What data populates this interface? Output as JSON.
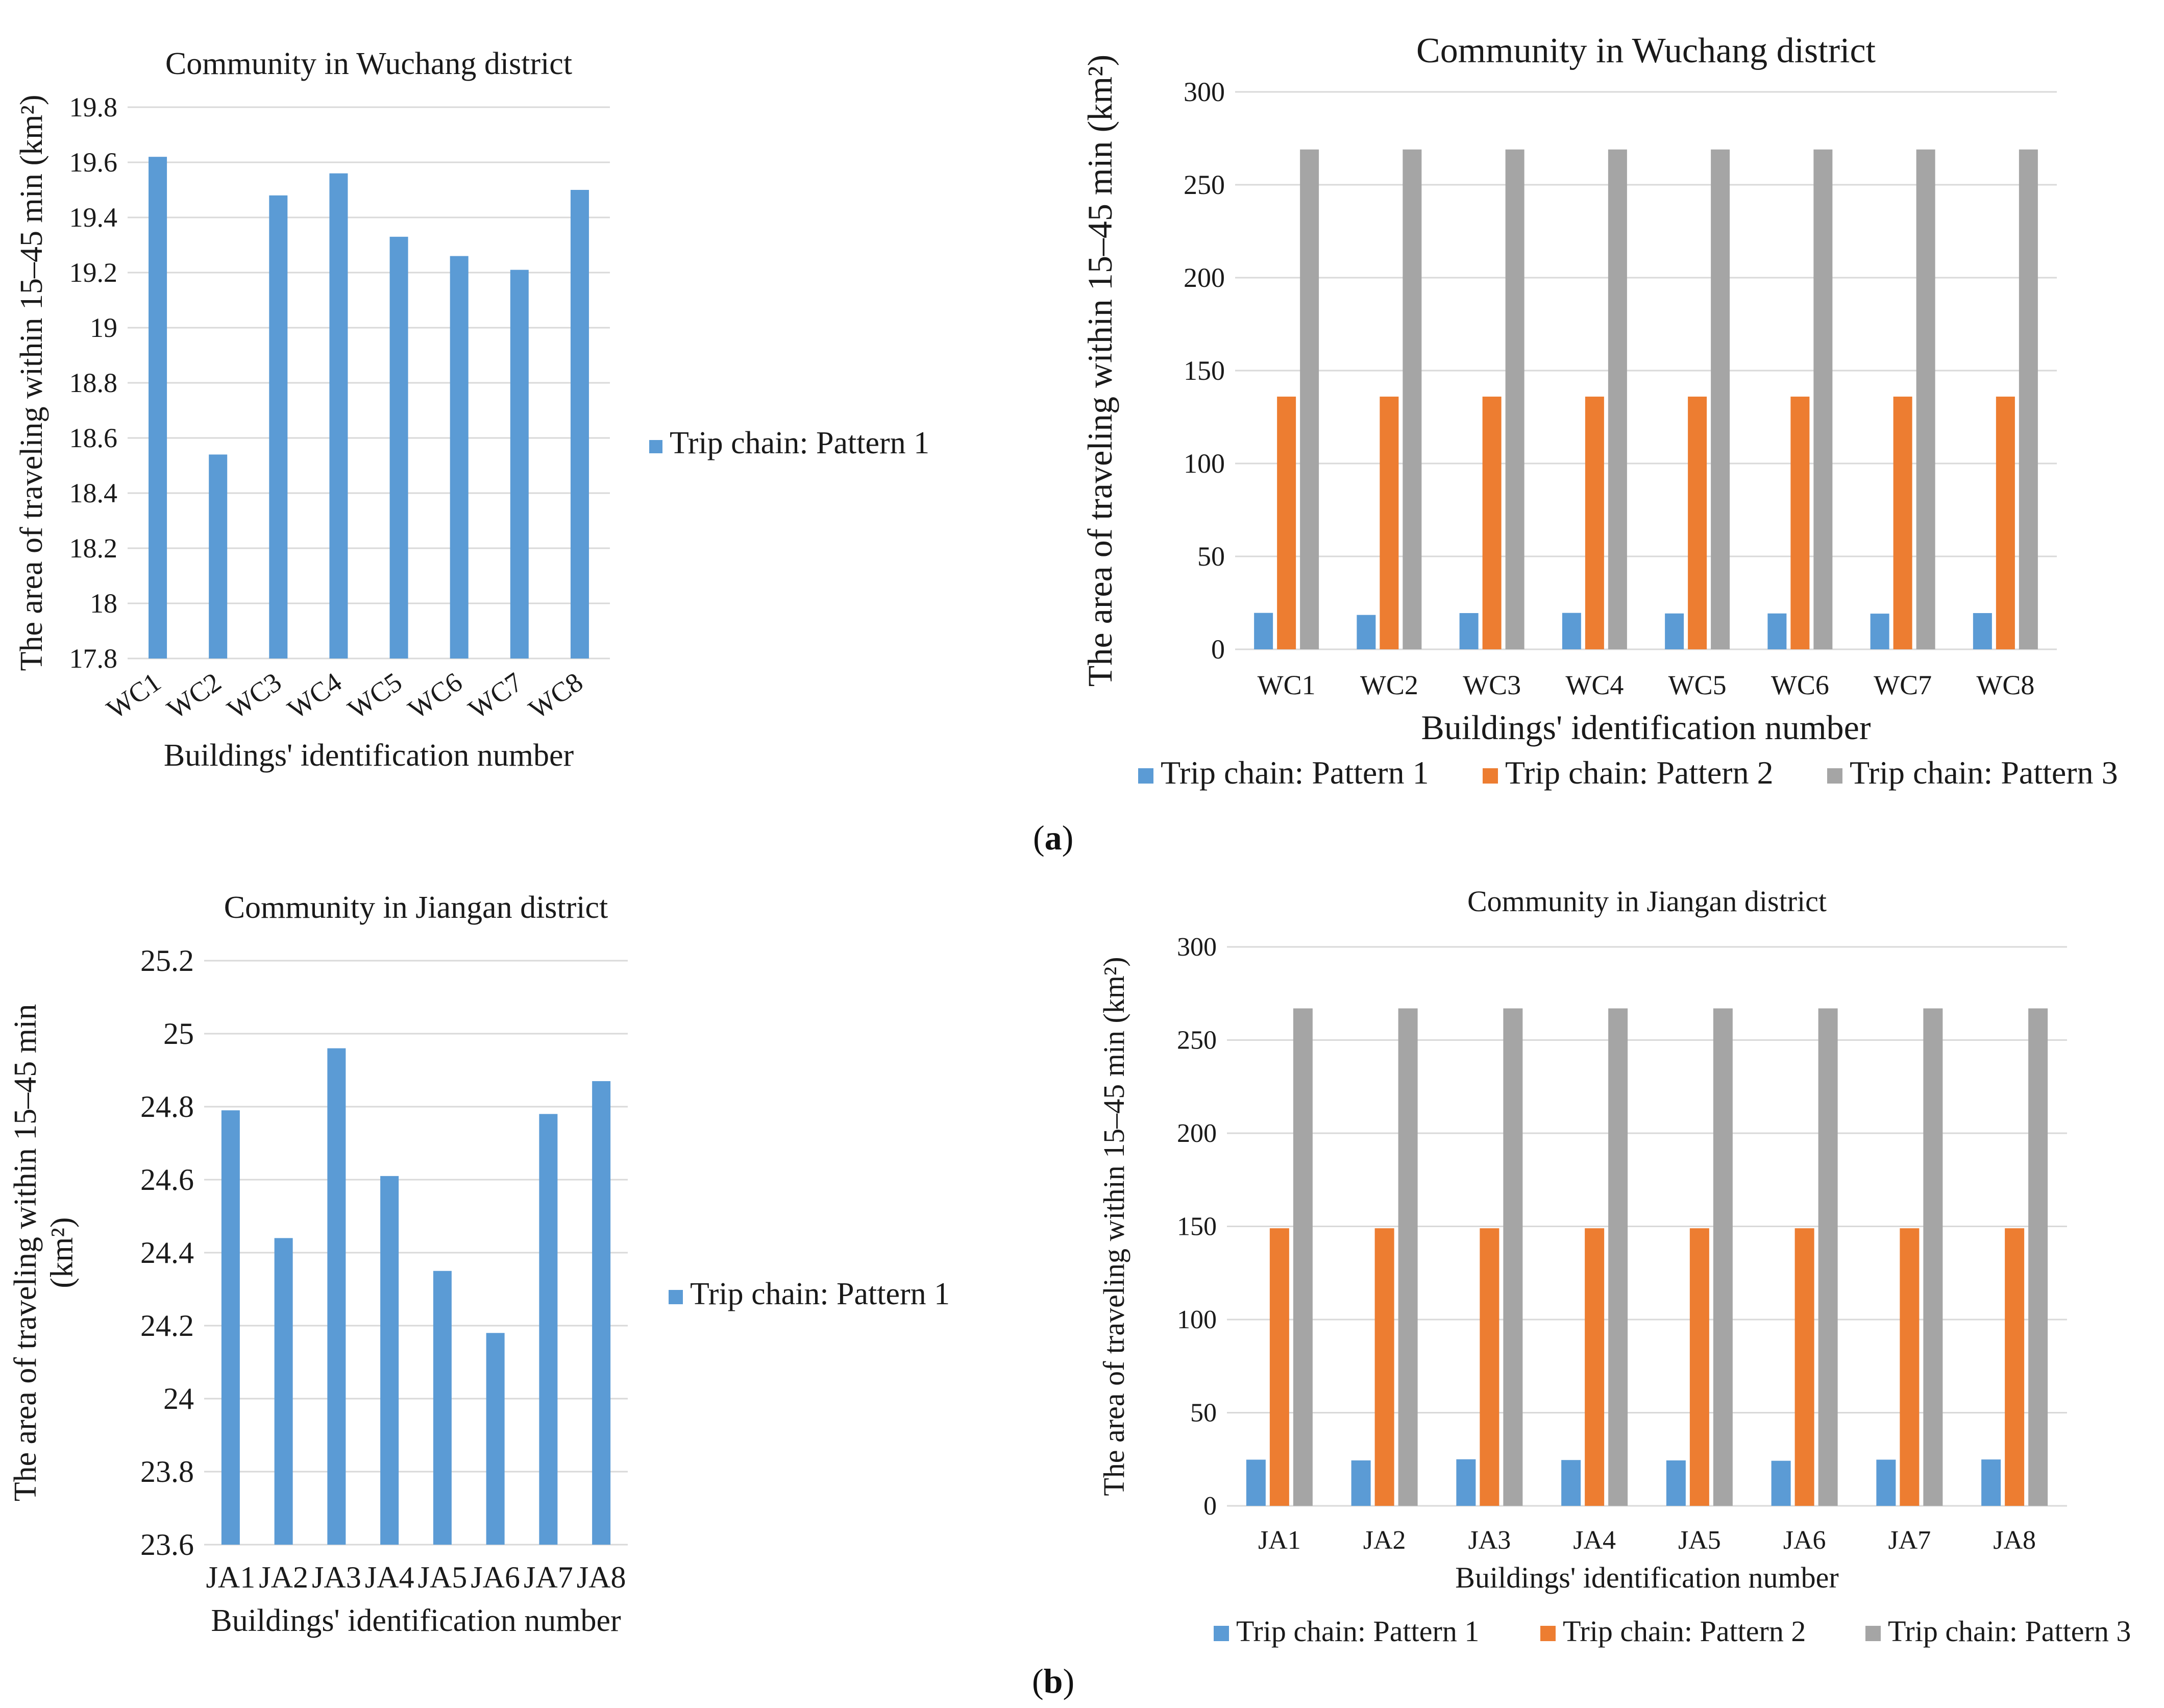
{
  "captions": {
    "a": "a",
    "b": "b"
  },
  "colors": {
    "series1": "#5b9bd5",
    "series2": "#ed7d31",
    "series3": "#a5a5a5",
    "grid": "#d9d9d9"
  },
  "chart_data": [
    {
      "id": "wc-single",
      "type": "bar",
      "title": "Community in Wuchang district",
      "xlabel": "Buildings' identification number",
      "ylabel": "The area of traveling within 15–45 min (km²)",
      "categories": [
        "WC1",
        "WC2",
        "WC3",
        "WC4",
        "WC5",
        "WC6",
        "WC7",
        "WC8"
      ],
      "ylim": [
        17.8,
        19.8
      ],
      "yticks": [
        "17.8",
        "18",
        "18.2",
        "18.4",
        "18.6",
        "18.8",
        "19",
        "19.2",
        "19.4",
        "19.6",
        "19.8"
      ],
      "grid": true,
      "legend": "right",
      "series": [
        {
          "name": "Trip chain: Pattern 1",
          "values": [
            19.62,
            18.54,
            19.48,
            19.56,
            19.33,
            19.26,
            19.21,
            19.5
          ]
        }
      ]
    },
    {
      "id": "wc-multi",
      "type": "bar",
      "title": "Community in Wuchang district",
      "xlabel": "Buildings' identification number",
      "ylabel": "The area of traveling within 15–45 min (km²)",
      "categories": [
        "WC1",
        "WC2",
        "WC3",
        "WC4",
        "WC5",
        "WC6",
        "WC7",
        "WC8"
      ],
      "ylim": [
        0,
        300
      ],
      "yticks": [
        "0",
        "50",
        "100",
        "150",
        "200",
        "250",
        "300"
      ],
      "grid": true,
      "legend": "bottom",
      "series": [
        {
          "name": "Trip chain: Pattern 1",
          "values": [
            19.6,
            18.5,
            19.5,
            19.6,
            19.3,
            19.3,
            19.2,
            19.5
          ]
        },
        {
          "name": "Trip chain: Pattern 2",
          "values": [
            136,
            136,
            136,
            136,
            136,
            136,
            136,
            136
          ]
        },
        {
          "name": "Trip chain: Pattern 3",
          "values": [
            269,
            269,
            269,
            269,
            269,
            269,
            269,
            269
          ]
        }
      ]
    },
    {
      "id": "ja-single",
      "type": "bar",
      "title": "Community in Jiangan district",
      "xlabel": "Buildings' identification number",
      "ylabel_lines": [
        "The area of traveling within 15–45 min",
        "(km²)"
      ],
      "categories": [
        "JA1",
        "JA2",
        "JA3",
        "JA4",
        "JA5",
        "JA6",
        "JA7",
        "JA8"
      ],
      "ylim": [
        23.6,
        25.2
      ],
      "yticks": [
        "23.6",
        "23.8",
        "24",
        "24.2",
        "24.4",
        "24.6",
        "24.8",
        "25",
        "25.2"
      ],
      "grid": true,
      "legend": "right",
      "series": [
        {
          "name": "Trip chain: Pattern 1",
          "values": [
            24.79,
            24.44,
            24.96,
            24.61,
            24.35,
            24.18,
            24.78,
            24.87
          ]
        }
      ]
    },
    {
      "id": "ja-multi",
      "type": "bar",
      "title": "Community in Jiangan district",
      "xlabel": "Buildings' identification number",
      "ylabel": "The area of traveling within 15–45 min (km²)",
      "categories": [
        "JA1",
        "JA2",
        "JA3",
        "JA4",
        "JA5",
        "JA6",
        "JA7",
        "JA8"
      ],
      "ylim": [
        0,
        300
      ],
      "yticks": [
        "0",
        "50",
        "100",
        "150",
        "200",
        "250",
        "300"
      ],
      "grid": true,
      "legend": "bottom",
      "series": [
        {
          "name": "Trip chain: Pattern 1",
          "values": [
            24.8,
            24.4,
            25.0,
            24.6,
            24.4,
            24.2,
            24.8,
            24.9
          ]
        },
        {
          "name": "Trip chain: Pattern 2",
          "values": [
            149,
            149,
            149,
            149,
            149,
            149,
            149,
            149
          ]
        },
        {
          "name": "Trip chain: Pattern 3",
          "values": [
            267,
            267,
            267,
            267,
            267,
            267,
            267,
            267
          ]
        }
      ]
    }
  ]
}
